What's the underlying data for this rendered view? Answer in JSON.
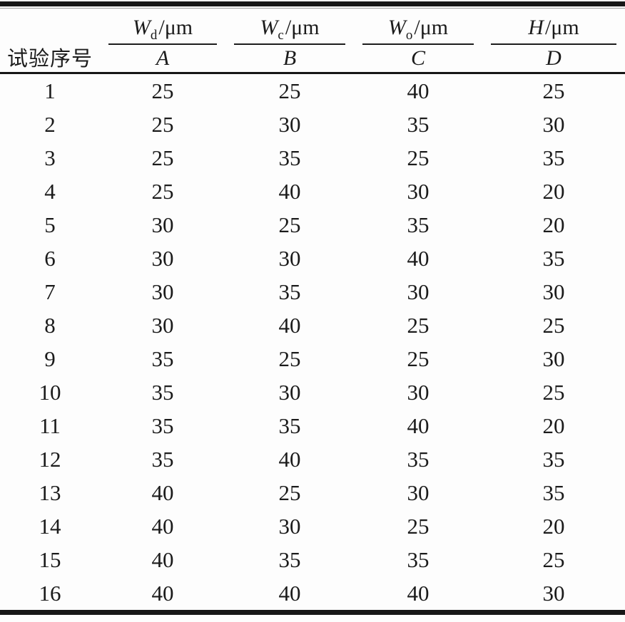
{
  "page": {
    "background": "#fdfdfd",
    "text_color": "#1b1b1b",
    "rule_color": "#171717"
  },
  "table": {
    "run_header": "试验序号",
    "columns": [
      {
        "symbol": "W",
        "subscript": "d",
        "unit": "/μm",
        "factor": "A"
      },
      {
        "symbol": "W",
        "subscript": "c",
        "unit": "/μm",
        "factor": "B"
      },
      {
        "symbol": "W",
        "subscript": "o",
        "unit": "/μm",
        "factor": "C"
      },
      {
        "symbol": "H",
        "subscript": "",
        "unit": "/μm",
        "factor": "D"
      }
    ],
    "rows": [
      {
        "no": "1",
        "values": [
          "25",
          "25",
          "40",
          "25"
        ]
      },
      {
        "no": "2",
        "values": [
          "25",
          "30",
          "35",
          "30"
        ]
      },
      {
        "no": "3",
        "values": [
          "25",
          "35",
          "25",
          "35"
        ]
      },
      {
        "no": "4",
        "values": [
          "25",
          "40",
          "30",
          "20"
        ]
      },
      {
        "no": "5",
        "values": [
          "30",
          "25",
          "35",
          "20"
        ]
      },
      {
        "no": "6",
        "values": [
          "30",
          "30",
          "40",
          "35"
        ]
      },
      {
        "no": "7",
        "values": [
          "30",
          "35",
          "30",
          "30"
        ]
      },
      {
        "no": "8",
        "values": [
          "30",
          "40",
          "25",
          "25"
        ]
      },
      {
        "no": "9",
        "values": [
          "35",
          "25",
          "25",
          "30"
        ]
      },
      {
        "no": "10",
        "values": [
          "35",
          "30",
          "30",
          "25"
        ]
      },
      {
        "no": "11",
        "values": [
          "35",
          "35",
          "40",
          "20"
        ]
      },
      {
        "no": "12",
        "values": [
          "35",
          "40",
          "35",
          "35"
        ]
      },
      {
        "no": "13",
        "values": [
          "40",
          "25",
          "30",
          "35"
        ]
      },
      {
        "no": "14",
        "values": [
          "40",
          "30",
          "25",
          "20"
        ]
      },
      {
        "no": "15",
        "values": [
          "40",
          "35",
          "35",
          "25"
        ]
      },
      {
        "no": "16",
        "values": [
          "40",
          "40",
          "40",
          "30"
        ]
      }
    ]
  }
}
